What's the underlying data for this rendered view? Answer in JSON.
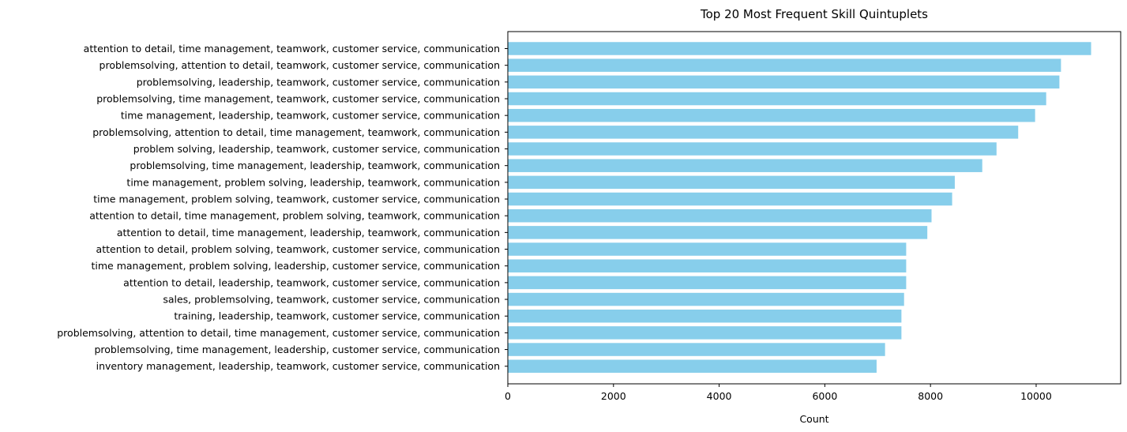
{
  "chart_data": {
    "type": "bar",
    "orientation": "horizontal",
    "title": "Top 20 Most Frequent Skill Quintuplets",
    "xlabel": "Count",
    "ylabel": "",
    "xlim": [
      0,
      11600
    ],
    "xticks": [
      0,
      2000,
      4000,
      6000,
      8000,
      10000
    ],
    "xtick_labels": [
      "0",
      "2000",
      "4000",
      "6000",
      "8000",
      "10000"
    ],
    "bar_color": "#87CEEB",
    "categories": [
      "attention to detail, time management, teamwork, customer service, communication",
      "problemsolving, attention to detail, teamwork, customer service, communication",
      "problemsolving, leadership, teamwork, customer service, communication",
      "problemsolving, time management, teamwork, customer service, communication",
      "time management, leadership, teamwork, customer service, communication",
      "problemsolving, attention to detail, time management, teamwork, communication",
      "problem solving, leadership, teamwork, customer service, communication",
      "problemsolving, time management, leadership, teamwork, communication",
      "time management, problem solving, leadership, teamwork, communication",
      "time management, problem solving, teamwork, customer service, communication",
      "attention to detail, time management, problem solving, teamwork, communication",
      "attention to detail, time management, leadership, teamwork, communication",
      "attention to detail, problem solving, teamwork, customer service, communication",
      "time management, problem solving, leadership, customer service, communication",
      "attention to detail, leadership, teamwork, customer service, communication",
      "sales, problemsolving, teamwork, customer service, communication",
      "training, leadership, teamwork, customer service, communication",
      "problemsolving, attention to detail, time management, customer service, communication",
      "problemsolving, time management, leadership, customer service, communication",
      "inventory management, leadership, teamwork, customer service, communication"
    ],
    "values": [
      11040,
      10470,
      10440,
      10190,
      9980,
      9660,
      9250,
      8980,
      8460,
      8410,
      8020,
      7940,
      7540,
      7540,
      7540,
      7500,
      7450,
      7450,
      7140,
      6980
    ]
  }
}
